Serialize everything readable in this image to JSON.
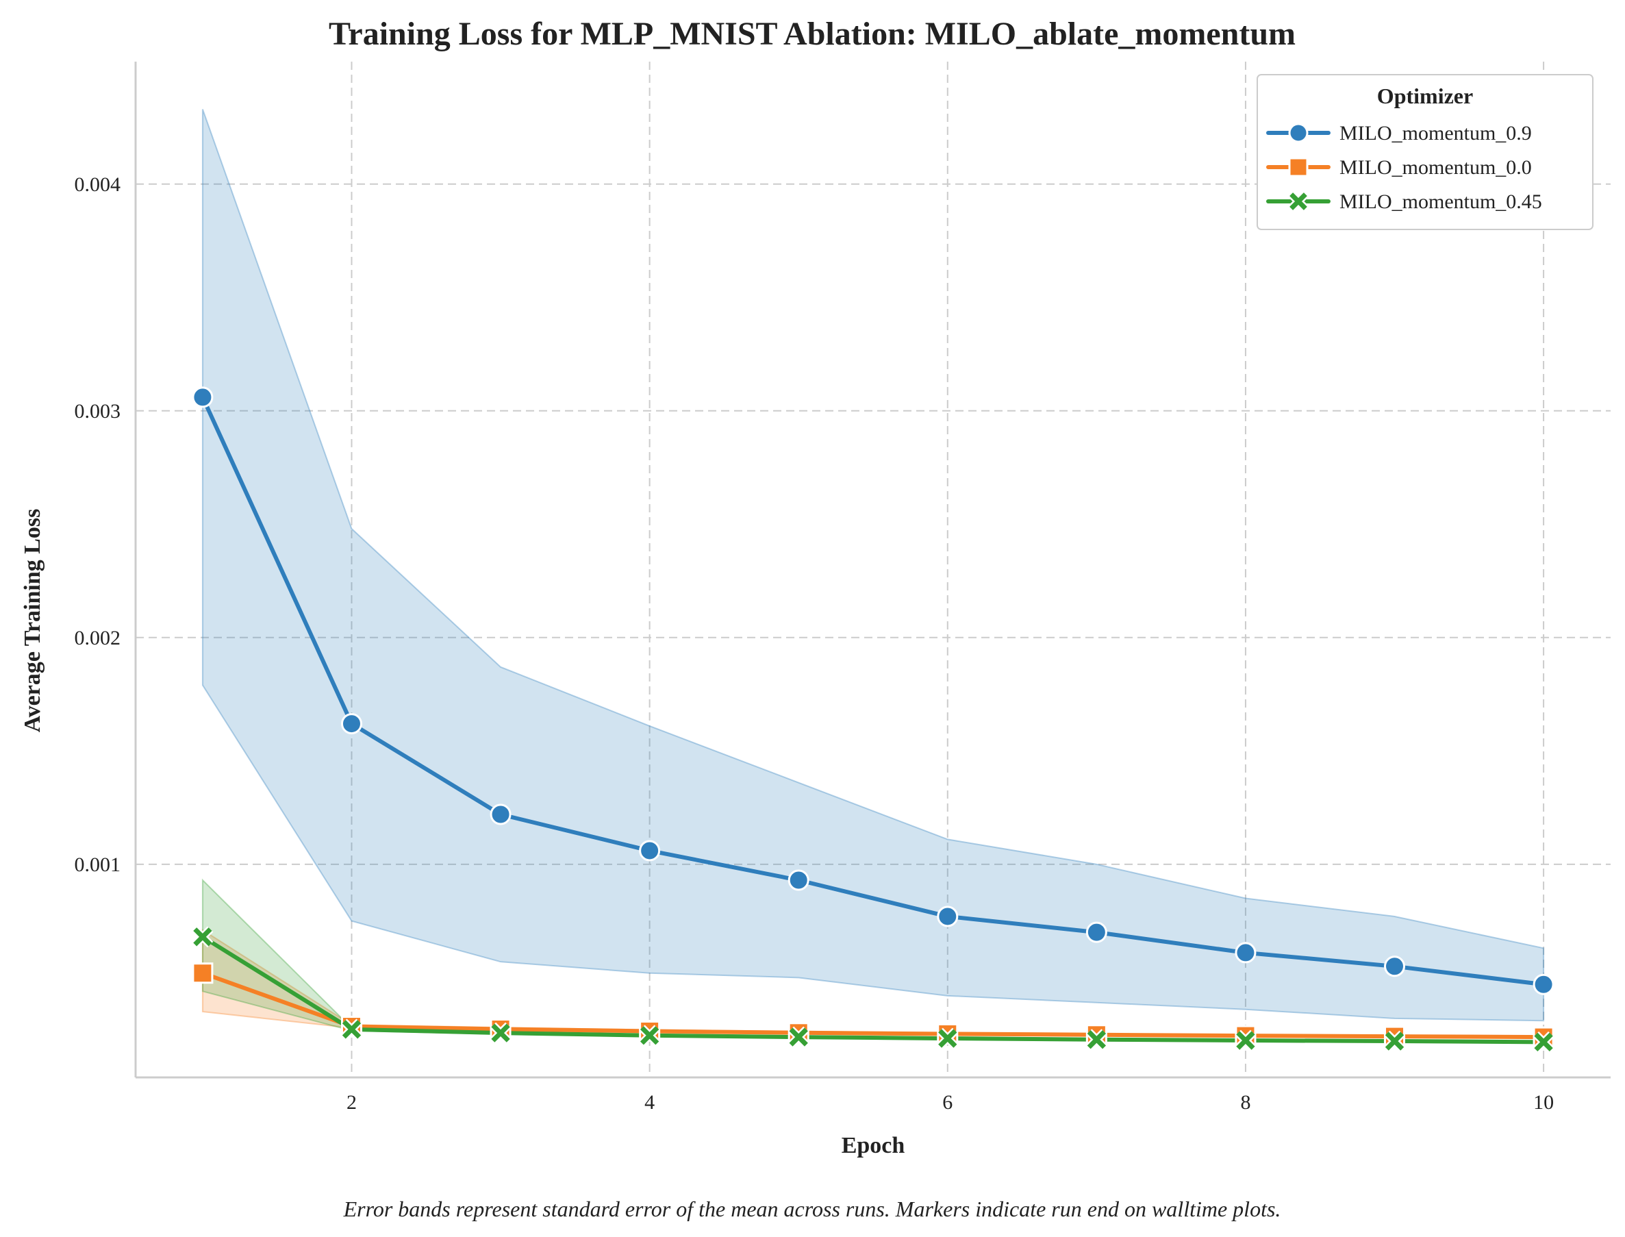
{
  "chart_data": {
    "type": "line",
    "title": "Training Loss for MLP_MNIST Ablation: MILO_ablate_momentum",
    "xlabel": "Epoch",
    "ylabel": "Average Training Loss",
    "x": [
      1,
      2,
      3,
      4,
      5,
      6,
      7,
      8,
      9,
      10
    ],
    "xlim": [
      0.55,
      10.45
    ],
    "ylim": [
      6e-05,
      0.00454
    ],
    "xticks": [
      2,
      4,
      6,
      8,
      10
    ],
    "xtick_labels": [
      "2",
      "4",
      "6",
      "8",
      "10"
    ],
    "yticks": [
      0.001,
      0.002,
      0.003,
      0.004
    ],
    "ytick_labels": [
      "0.001",
      "0.002",
      "0.003",
      "0.004"
    ],
    "grid": true,
    "legend": {
      "title": "Optimizer",
      "position": "top-right"
    },
    "series": [
      {
        "name": "MILO_momentum_0.9",
        "color": "#2f7ebc",
        "marker": "circle",
        "values": [
          0.00306,
          0.00162,
          0.00122,
          0.00106,
          0.00093,
          0.00077,
          0.0007,
          0.00061,
          0.00055,
          0.00047
        ],
        "lower": [
          0.00179,
          0.00075,
          0.00057,
          0.00052,
          0.0005,
          0.00042,
          0.00039,
          0.00036,
          0.00032,
          0.00031
        ],
        "upper": [
          0.00433,
          0.00248,
          0.00187,
          0.00161,
          0.00136,
          0.00111,
          0.001,
          0.00085,
          0.00077,
          0.00063
        ]
      },
      {
        "name": "MILO_momentum_0.0",
        "color": "#f58025",
        "marker": "square",
        "values": [
          0.00052,
          0.000285,
          0.000273,
          0.000264,
          0.000257,
          0.000252,
          0.000248,
          0.000244,
          0.000241,
          0.000238
        ],
        "lower": [
          0.00035,
          0.000278,
          0.000266,
          0.000258,
          0.000252,
          0.000247,
          0.000243,
          0.000239,
          0.000236,
          0.000233
        ],
        "upper": [
          0.00071,
          0.000292,
          0.00028,
          0.00027,
          0.000263,
          0.000257,
          0.000253,
          0.000249,
          0.000246,
          0.000243
        ]
      },
      {
        "name": "MILO_momentum_0.45",
        "color": "#36a035",
        "marker": "x",
        "values": [
          0.00068,
          0.000272,
          0.000256,
          0.000245,
          0.000238,
          0.000232,
          0.000227,
          0.000223,
          0.00022,
          0.000216
        ],
        "lower": [
          0.00044,
          0.000266,
          0.000251,
          0.00024,
          0.000233,
          0.000227,
          0.000222,
          0.000218,
          0.000215,
          0.000211
        ],
        "upper": [
          0.00093,
          0.000278,
          0.000261,
          0.00025,
          0.000243,
          0.000237,
          0.000232,
          0.000228,
          0.000225,
          0.000221
        ]
      }
    ],
    "annotations": [
      "Error bands represent standard error of the mean across runs. Markers indicate run end on walltime plots."
    ]
  }
}
